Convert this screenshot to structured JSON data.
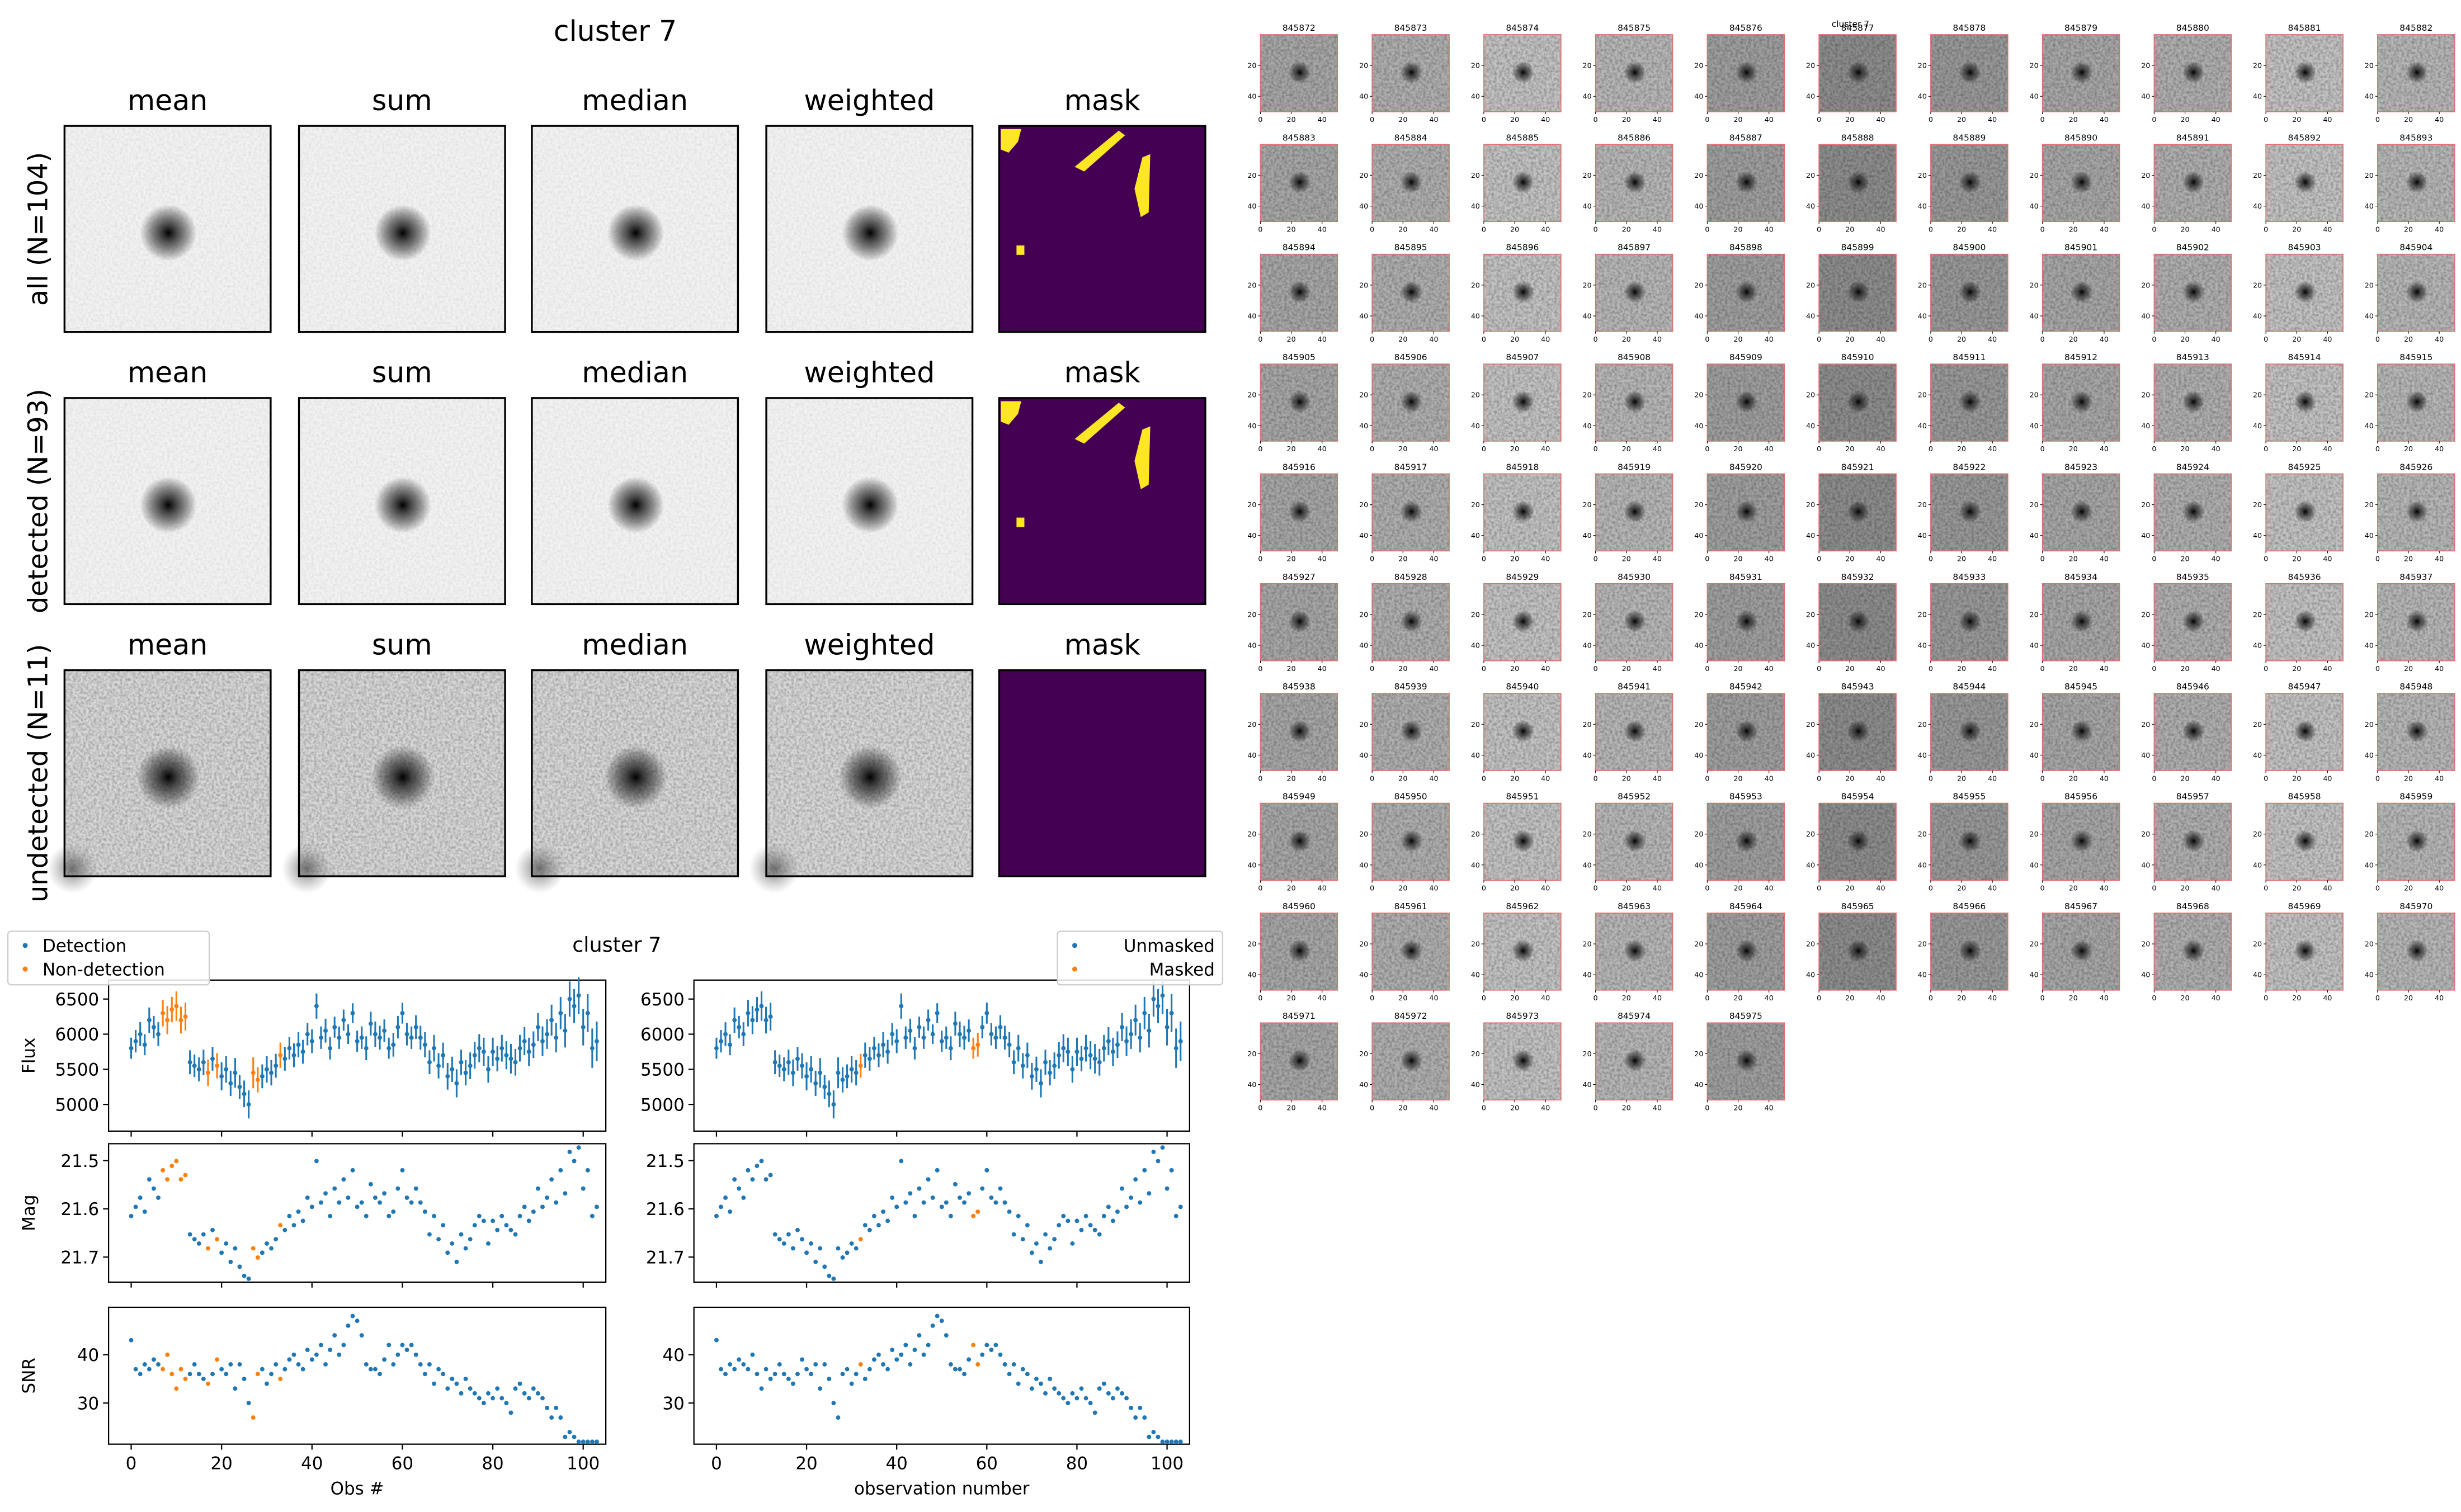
{
  "figure_title": "cluster 7",
  "panels": {
    "columns": [
      "mean",
      "sum",
      "median",
      "weighted",
      "mask"
    ],
    "rows": [
      "all (N=104)",
      "detected (N=93)",
      "undetected (N=11)"
    ]
  },
  "chart_data": {
    "type": "errorbar-scatter",
    "title": "cluster 7",
    "x": [
      0,
      1,
      2,
      3,
      4,
      5,
      6,
      7,
      8,
      9,
      10,
      11,
      12,
      13,
      14,
      15,
      16,
      17,
      18,
      19,
      20,
      21,
      22,
      23,
      24,
      25,
      26,
      27,
      28,
      29,
      30,
      31,
      32,
      33,
      34,
      35,
      36,
      37,
      38,
      39,
      40,
      41,
      42,
      43,
      44,
      45,
      46,
      47,
      48,
      49,
      50,
      51,
      52,
      53,
      54,
      55,
      56,
      57,
      58,
      59,
      60,
      61,
      62,
      63,
      64,
      65,
      66,
      67,
      68,
      69,
      70,
      71,
      72,
      73,
      74,
      75,
      76,
      77,
      78,
      79,
      80,
      81,
      82,
      83,
      84,
      85,
      86,
      87,
      88,
      89,
      90,
      91,
      92,
      93,
      94,
      95,
      96,
      97,
      98,
      99,
      100,
      101,
      102,
      103
    ],
    "xlim": [
      -5,
      105
    ],
    "xticks": [
      0,
      20,
      40,
      60,
      80,
      100
    ],
    "xlabels": [
      "Obs #",
      "observation number"
    ],
    "legends": [
      {
        "loc": "upper left",
        "entries": [
          {
            "name": "Detection",
            "color": "#1f77b4"
          },
          {
            "name": "Non-detection",
            "color": "#ff7f0e",
            "obs": [
              7,
              8,
              9,
              10,
              11,
              12,
              17,
              19,
              27,
              28,
              33
            ]
          }
        ]
      },
      {
        "loc": "upper right",
        "entries": [
          {
            "name": "Unmasked",
            "color": "#1f77b4"
          },
          {
            "name": "Masked",
            "color": "#ff7f0e",
            "obs": [
              32,
              57,
              58
            ]
          }
        ]
      }
    ],
    "rows": [
      {
        "ylabel": "Flux",
        "ylim": [
          4620,
          6770
        ],
        "yticks": [
          5000,
          5500,
          6000,
          6500
        ],
        "values": [
          5800,
          5900,
          6000,
          5850,
          6200,
          6100,
          6000,
          6300,
          6200,
          6350,
          6400,
          6200,
          6250,
          5600,
          5550,
          5500,
          5600,
          5450,
          5650,
          5550,
          5400,
          5500,
          5300,
          5450,
          5250,
          5150,
          5000,
          5450,
          5350,
          5400,
          5500,
          5450,
          5550,
          5700,
          5650,
          5800,
          5700,
          5850,
          5750,
          6000,
          5900,
          6400,
          5950,
          6050,
          5800,
          6100,
          5950,
          6200,
          6000,
          6300,
          5900,
          5950,
          5800,
          6150,
          6000,
          5950,
          6050,
          5800,
          5850,
          6100,
          6300,
          6000,
          5950,
          6100,
          5950,
          5850,
          5600,
          5800,
          5550,
          5700,
          5400,
          5500,
          5300,
          5600,
          5450,
          5550,
          5700,
          5800,
          5750,
          5500,
          5750,
          5650,
          5800,
          5700,
          5650,
          5600,
          5800,
          5900,
          5750,
          5850,
          6100,
          5900,
          6000,
          6200,
          5950,
          6300,
          6050,
          6500,
          6400,
          6550,
          6100,
          6300,
          5800,
          5900
        ],
        "errors": [
          150,
          160,
          170,
          150,
          180,
          160,
          170,
          190,
          200,
          180,
          210,
          190,
          200,
          170,
          160,
          170,
          180,
          190,
          170,
          180,
          200,
          190,
          180,
          210,
          170,
          190,
          200,
          220,
          180,
          170,
          190,
          180,
          170,
          180,
          170,
          160,
          170,
          180,
          170,
          160,
          170,
          180,
          160,
          170,
          160,
          150,
          160,
          150,
          140,
          140,
          150,
          160,
          170,
          170,
          180,
          170,
          160,
          150,
          170,
          160,
          150,
          160,
          160,
          170,
          170,
          180,
          170,
          190,
          180,
          180,
          190,
          180,
          200,
          180,
          180,
          190,
          190,
          200,
          200,
          190,
          200,
          180,
          190,
          200,
          210,
          190,
          190,
          200,
          200,
          190,
          200,
          210,
          210,
          220,
          210,
          230,
          240,
          250,
          240,
          260,
          260,
          270,
          280,
          280
        ]
      },
      {
        "ylabel": "Mag",
        "ylim": [
          21.752,
          21.465
        ],
        "yticks": [
          21.5,
          21.6,
          21.7
        ],
        "values": [
          21.615,
          21.596,
          21.577,
          21.606,
          21.539,
          21.558,
          21.577,
          21.52,
          21.539,
          21.511,
          21.501,
          21.539,
          21.53,
          21.653,
          21.663,
          21.672,
          21.653,
          21.682,
          21.644,
          21.663,
          21.691,
          21.672,
          21.71,
          21.682,
          21.72,
          21.739,
          21.745,
          21.682,
          21.701,
          21.691,
          21.672,
          21.682,
          21.663,
          21.634,
          21.644,
          21.615,
          21.634,
          21.606,
          21.625,
          21.577,
          21.596,
          21.501,
          21.587,
          21.568,
          21.615,
          21.558,
          21.587,
          21.539,
          21.577,
          21.52,
          21.596,
          21.587,
          21.615,
          21.549,
          21.577,
          21.587,
          21.568,
          21.615,
          21.606,
          21.558,
          21.52,
          21.577,
          21.587,
          21.558,
          21.587,
          21.606,
          21.653,
          21.615,
          21.663,
          21.634,
          21.691,
          21.672,
          21.71,
          21.653,
          21.682,
          21.663,
          21.634,
          21.615,
          21.625,
          21.672,
          21.625,
          21.644,
          21.615,
          21.634,
          21.644,
          21.653,
          21.615,
          21.596,
          21.625,
          21.606,
          21.558,
          21.596,
          21.577,
          21.539,
          21.587,
          21.52,
          21.568,
          21.482,
          21.501,
          21.473,
          21.558,
          21.52,
          21.615,
          21.596
        ]
      },
      {
        "ylabel": "SNR",
        "ylim": [
          21.5,
          49.8
        ],
        "yticks": [
          30,
          40
        ],
        "values": [
          43,
          37,
          36,
          38,
          37,
          39,
          38,
          37,
          40,
          36,
          33,
          37,
          35,
          36,
          38,
          36,
          35,
          34,
          36,
          39,
          37,
          36,
          38,
          33,
          38,
          35,
          30,
          27,
          36,
          37,
          34,
          36,
          38,
          35,
          37,
          39,
          40,
          38,
          37,
          41,
          39,
          40,
          42,
          38,
          41,
          44,
          40,
          42,
          46,
          48,
          47,
          44,
          38,
          37,
          37,
          36,
          39,
          42,
          38,
          40,
          42,
          41,
          42,
          40,
          38,
          36,
          38,
          34,
          37,
          36,
          33,
          35,
          34,
          32,
          35,
          33,
          32,
          31,
          30,
          32,
          31,
          33,
          31,
          30,
          28,
          33,
          34,
          32,
          31,
          33,
          32,
          31,
          29,
          27,
          29,
          27,
          23,
          24,
          23,
          22,
          22,
          22,
          22,
          22
        ]
      }
    ]
  },
  "stamps": {
    "title": "cluster 7",
    "lim": [
      0,
      50
    ],
    "xticks": [
      0,
      20,
      40
    ],
    "yticks": [
      20,
      40
    ],
    "ids": [
      845872,
      845873,
      845874,
      845875,
      845876,
      845877,
      845878,
      845879,
      845880,
      845881,
      845882,
      845883,
      845884,
      845885,
      845886,
      845887,
      845888,
      845889,
      845890,
      845891,
      845892,
      845893,
      845894,
      845895,
      845896,
      845897,
      845898,
      845899,
      845900,
      845901,
      845902,
      845903,
      845904,
      845905,
      845906,
      845907,
      845908,
      845909,
      845910,
      845911,
      845912,
      845913,
      845914,
      845915,
      845916,
      845917,
      845918,
      845919,
      845920,
      845921,
      845922,
      845923,
      845924,
      845925,
      845926,
      845927,
      845928,
      845929,
      845930,
      845931,
      845932,
      845933,
      845934,
      845935,
      845936,
      845937,
      845938,
      845939,
      845940,
      845941,
      845942,
      845943,
      845944,
      845945,
      845946,
      845947,
      845948,
      845949,
      845950,
      845951,
      845952,
      845953,
      845954,
      845955,
      845956,
      845957,
      845958,
      845959,
      845960,
      845961,
      845962,
      845963,
      845964,
      845965,
      845966,
      845967,
      845968,
      845969,
      845970,
      845971,
      845972,
      845973,
      845974,
      845975
    ]
  }
}
